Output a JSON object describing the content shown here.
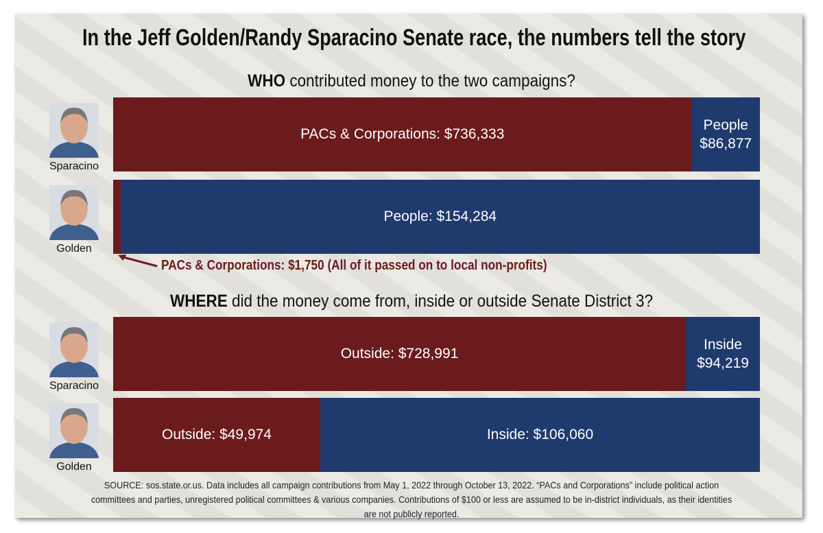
{
  "title": "In the Jeff Golden/Randy Sparacino Senate race, the numbers tell the story",
  "source": "SOURCE: sos.state.or.us. Data includes all campaign contributions from May 1, 2022 through October 13, 2022. “PACs and Corporations” include political action committees and parties, unregistered political committees & various companies.  Contributions of $100 or less are assumed to be in-district individuals, as their identities are not publicly reported.",
  "chart_data": [
    {
      "type": "bar",
      "stacked": "percent",
      "orientation": "horizontal",
      "title": {
        "bold": "WHO",
        "text": "contributed money to the two campaigns?"
      },
      "categories": [
        "Sparacino",
        "Golden"
      ],
      "series": [
        {
          "color": "#6b1b1c",
          "values": [
            736333,
            1750
          ],
          "value_labels": [
            "PACs & Corporations: $736,333",
            "PACs & Corporations: $1,750 (All of it passed on to local non-profits)"
          ]
        },
        {
          "color": "#1f3a6d",
          "values": [
            86877,
            154284
          ],
          "value_labels": [
            "People $86,877",
            "People: $154,284"
          ]
        }
      ]
    },
    {
      "type": "bar",
      "stacked": "percent",
      "orientation": "horizontal",
      "title": {
        "bold": "WHERE",
        "text": "did the money come from, inside or outside Senate District 3?"
      },
      "categories": [
        "Sparacino",
        "Golden"
      ],
      "series": [
        {
          "color": "#6b1b1c",
          "values": [
            728991,
            49974
          ],
          "value_labels": [
            "Outside: $728,991",
            "Outside: $49,974"
          ]
        },
        {
          "color": "#1f3a6d",
          "values": [
            94219,
            106060
          ],
          "value_labels": [
            "Inside $94,219",
            "Inside: $106,060"
          ]
        }
      ]
    }
  ]
}
